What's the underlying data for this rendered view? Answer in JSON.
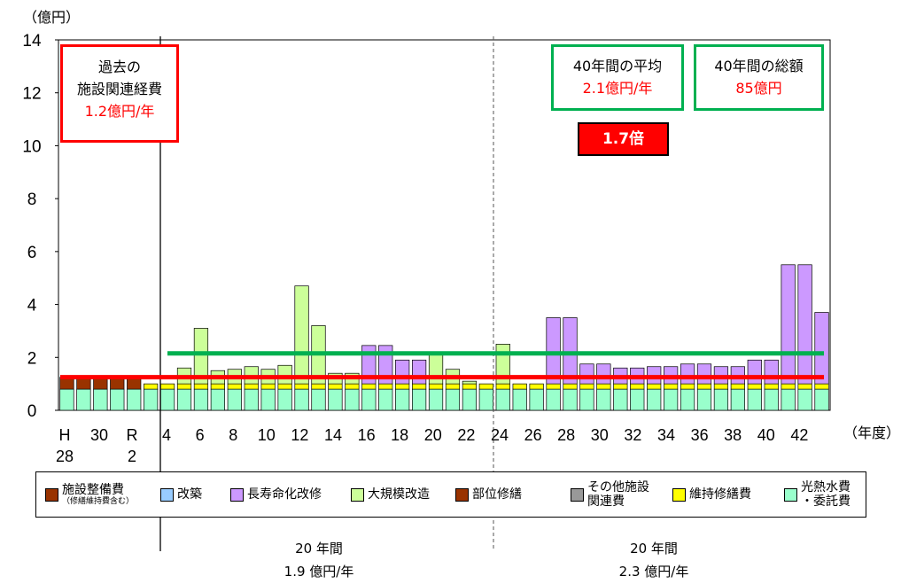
{
  "chart_data": {
    "type": "bar",
    "ylabel": "（億円）",
    "xlabel": "（年度）",
    "ylim": [
      0,
      14
    ],
    "yticks": [
      "0",
      "2",
      "4",
      "6",
      "8",
      "10",
      "12",
      "14"
    ],
    "categories": [
      "H28",
      "H29",
      "H30",
      "R1",
      "R2",
      "R3",
      "R4",
      "R5",
      "R6",
      "R7",
      "R8",
      "R9",
      "R10",
      "R11",
      "R12",
      "R13",
      "R14",
      "R15",
      "R16",
      "R17",
      "R18",
      "R19",
      "R20",
      "R21",
      "R22",
      "R23",
      "R24",
      "R25",
      "R26",
      "R27",
      "R28",
      "R29",
      "R30",
      "R31",
      "R32",
      "R33",
      "R34",
      "R35",
      "R36",
      "R37",
      "R38",
      "R39",
      "R40",
      "R41",
      "R42",
      "R43"
    ],
    "xtick_labels": [
      "H",
      "28",
      "30",
      "R",
      "2",
      "4",
      "6",
      "8",
      "10",
      "12",
      "14",
      "16",
      "18",
      "20",
      "22",
      "24",
      "26",
      "28",
      "30",
      "32",
      "34",
      "36",
      "38",
      "40",
      "42"
    ],
    "series": [
      {
        "name": "光熱水費・委託費",
        "color": "#99ffcc",
        "values": [
          0.8,
          0.8,
          0.8,
          0.8,
          0.8,
          0.8,
          0.8,
          0.8,
          0.8,
          0.8,
          0.8,
          0.8,
          0.8,
          0.8,
          0.8,
          0.8,
          0.8,
          0.8,
          0.8,
          0.8,
          0.8,
          0.8,
          0.8,
          0.8,
          0.8,
          0.8,
          0.8,
          0.8,
          0.8,
          0.8,
          0.8,
          0.8,
          0.8,
          0.8,
          0.8,
          0.8,
          0.8,
          0.8,
          0.8,
          0.8,
          0.8,
          0.8,
          0.8,
          0.8,
          0.8,
          0.8
        ]
      },
      {
        "name": "維持修繕費",
        "color": "#ffff00",
        "values": [
          0,
          0,
          0,
          0,
          0,
          0.2,
          0.2,
          0.2,
          0.2,
          0.2,
          0.2,
          0.2,
          0.2,
          0.2,
          0.2,
          0.2,
          0.2,
          0.2,
          0.2,
          0.2,
          0.2,
          0.2,
          0.2,
          0.2,
          0.2,
          0.2,
          0.2,
          0.2,
          0.2,
          0.2,
          0.2,
          0.2,
          0.2,
          0.2,
          0.2,
          0.2,
          0.2,
          0.2,
          0.2,
          0.2,
          0.2,
          0.2,
          0.2,
          0.2,
          0.2,
          0.2
        ]
      },
      {
        "name": "その他施設関連費",
        "color": "#999999",
        "values": [
          0,
          0,
          0,
          0,
          0,
          0,
          0,
          0,
          0,
          0,
          0,
          0,
          0,
          0,
          0,
          0,
          0,
          0,
          0,
          0,
          0,
          0,
          0,
          0,
          0,
          0,
          0,
          0,
          0,
          0,
          0,
          0,
          0,
          0,
          0,
          0,
          0,
          0,
          0,
          0,
          0,
          0,
          0,
          0,
          0,
          0
        ]
      },
      {
        "name": "施設整備費（修繕維持費含む）",
        "color": "#993300",
        "values": [
          0.45,
          0.45,
          0.45,
          0.45,
          0.45,
          0,
          0,
          0,
          0,
          0,
          0,
          0,
          0,
          0,
          0,
          0,
          0,
          0,
          0,
          0,
          0,
          0,
          0,
          0,
          0,
          0,
          0,
          0,
          0,
          0,
          0,
          0,
          0,
          0,
          0,
          0,
          0,
          0,
          0,
          0,
          0,
          0,
          0,
          0,
          0,
          0
        ]
      },
      {
        "name": "大規模改造",
        "color": "#ccff99",
        "values": [
          0,
          0,
          0,
          0,
          0,
          0,
          0,
          0.6,
          2.1,
          0.5,
          0.55,
          0.65,
          0.55,
          0.7,
          3.7,
          2.2,
          0.4,
          0.4,
          0,
          0,
          0,
          0,
          1.1,
          0.55,
          0.1,
          0,
          1.5,
          0,
          0,
          0,
          0,
          0,
          0,
          0,
          0,
          0,
          0,
          0,
          0,
          0,
          0,
          0,
          0,
          0,
          0,
          0
        ]
      },
      {
        "name": "長寿命化改修",
        "color": "#cc99ff",
        "values": [
          0,
          0,
          0,
          0,
          0,
          0,
          0,
          0,
          0,
          0,
          0,
          0,
          0,
          0,
          0,
          0,
          0,
          0,
          1.45,
          1.45,
          0.9,
          0.9,
          0,
          0,
          0,
          0,
          0,
          0,
          0,
          2.5,
          2.5,
          0.75,
          0.75,
          0.6,
          0.6,
          0.65,
          0.65,
          0.75,
          0.75,
          0.65,
          0.65,
          0.9,
          0.9,
          4.5,
          4.5,
          2.7
        ]
      }
    ],
    "avg_lines": [
      {
        "label": "過去の施設関連経費",
        "value": 1.25,
        "color": "#ff0000"
      },
      {
        "label": "40年間の平均",
        "value": 2.15,
        "color": "#00b050"
      }
    ]
  },
  "legend": [
    {
      "label": "施設整備費",
      "sub": "（修繕維持費含む）",
      "color": "#993300"
    },
    {
      "label": "改築",
      "color": "#99ccff"
    },
    {
      "label": "長寿命化改修",
      "color": "#cc99ff"
    },
    {
      "label": "大規模改造",
      "color": "#ccff99"
    },
    {
      "label": "部位修繕",
      "color": "#993300"
    },
    {
      "label": "その他施設",
      "label2": "関連費",
      "color": "#999999"
    },
    {
      "label": "維持修繕費",
      "color": "#ffff00"
    },
    {
      "label": "光熱水費",
      "label2": "・委託費",
      "color": "#99ffcc"
    }
  ],
  "annotations": {
    "past_title1": "過去の",
    "past_title2": "施設関連経費",
    "past_value": "1.2億円/年",
    "avg_title": "40年間の平均",
    "avg_value": "2.1億円/年",
    "total_title": "40年間の総額",
    "total_value": "85億円",
    "ratio": "1.7倍"
  },
  "periods": [
    {
      "line1": "20 年間",
      "line2": "1.9 億円/年"
    },
    {
      "line1": "20 年間",
      "line2": "2.3 億円/年"
    }
  ]
}
